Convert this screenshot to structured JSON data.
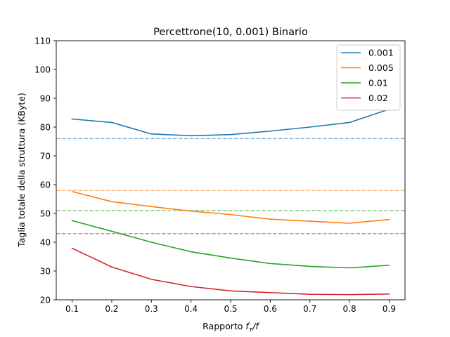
{
  "chart_data": {
    "type": "line",
    "title": "Percettrone(10, 0.001) Binario",
    "xlabel_prefix": "Rapporto ",
    "xlabel_math": "f",
    "xlabel_sub": "τ",
    "xlabel_suffix": "/f",
    "ylabel": "Taglia totale della struttura (KByte)",
    "xlim": [
      0.06,
      0.94
    ],
    "ylim": [
      20,
      110
    ],
    "x": [
      0.1,
      0.2,
      0.3,
      0.4,
      0.5,
      0.6,
      0.7,
      0.8,
      0.9
    ],
    "x_ticks": [
      "0.1",
      "0.2",
      "0.3",
      "0.4",
      "0.5",
      "0.6",
      "0.7",
      "0.8",
      "0.9"
    ],
    "y_ticks": [
      "20",
      "30",
      "40",
      "50",
      "60",
      "70",
      "80",
      "90",
      "100",
      "110"
    ],
    "legend_position": "top-right",
    "grid": false,
    "series": [
      {
        "name": "0.001",
        "color": "#1f77b4",
        "values": [
          82.8,
          81.6,
          77.6,
          77.0,
          77.4,
          78.6,
          80.0,
          81.6,
          86.2
        ],
        "baseline": 76.0
      },
      {
        "name": "0.005",
        "color": "#ff7f0e",
        "values": [
          57.6,
          54.1,
          52.4,
          50.8,
          49.6,
          48.0,
          47.3,
          46.6,
          47.9
        ],
        "baseline": 58.0
      },
      {
        "name": "0.01",
        "color": "#2ca02c",
        "values": [
          47.5,
          43.8,
          40.0,
          36.7,
          34.5,
          32.6,
          31.6,
          31.1,
          32.0
        ],
        "baseline": 51.0
      },
      {
        "name": "0.02",
        "color": "#d62728",
        "values": [
          37.9,
          31.4,
          27.1,
          24.6,
          23.1,
          22.5,
          21.9,
          21.8,
          22.0
        ],
        "baseline": 43.0
      }
    ]
  }
}
